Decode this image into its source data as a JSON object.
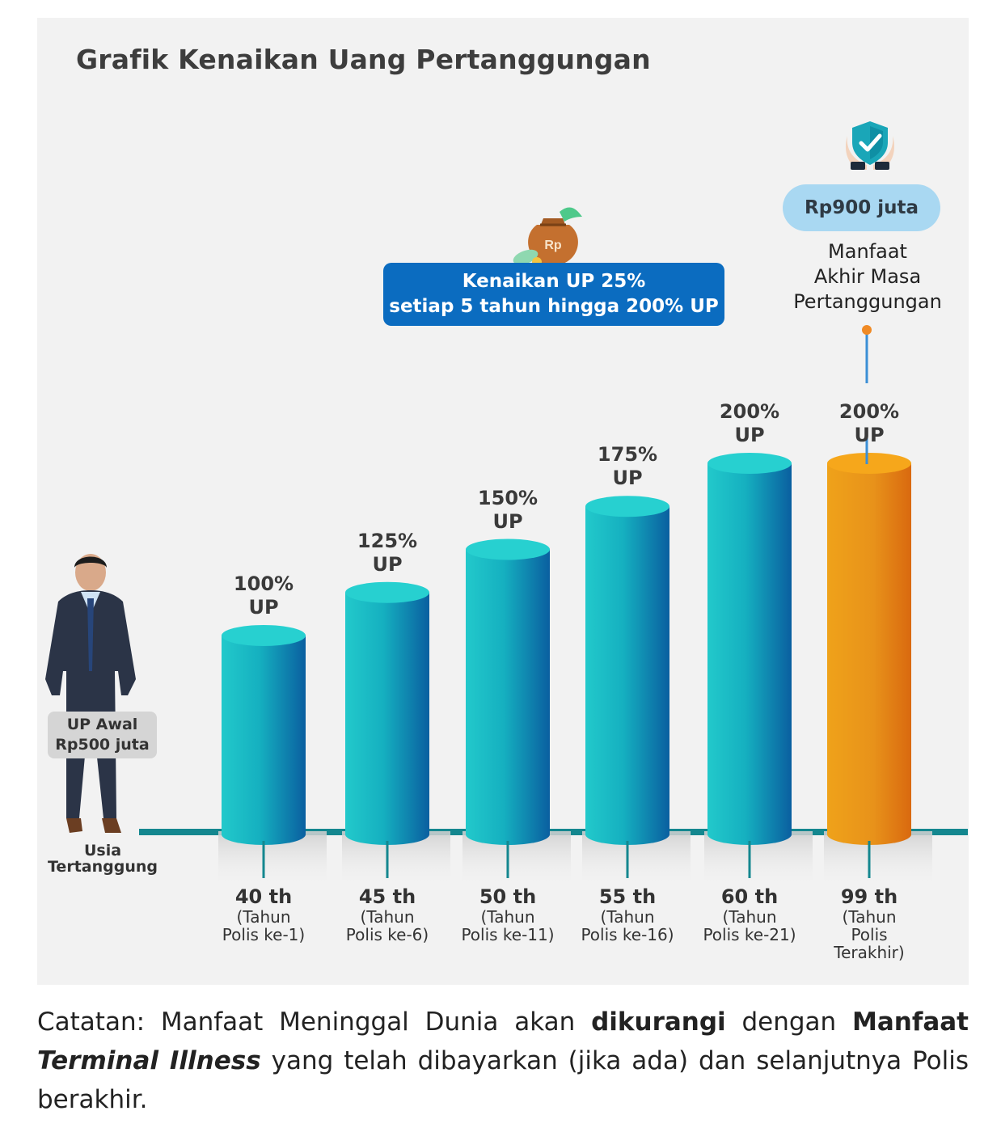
{
  "chart_data": {
    "type": "bar",
    "title": "Grafik Kenaikan Uang Pertanggungan",
    "categories": [
      "40 th",
      "45 th",
      "50 th",
      "55 th",
      "60 th",
      "99 th"
    ],
    "category_subtitles": [
      "(Tahun\nPolis ke-1)",
      "(Tahun\nPolis ke-6)",
      "(Tahun\nPolis ke-11)",
      "(Tahun\nPolis ke-16)",
      "(Tahun\nPolis ke-21)",
      "(Tahun\nPolis\nTerakhir)"
    ],
    "values": [
      100,
      125,
      150,
      175,
      200,
      200
    ],
    "value_labels": [
      "100%\nUP",
      "125%\nUP",
      "150%\nUP",
      "175%\nUP",
      "200%\nUP",
      "200%\nUP"
    ],
    "ylim": [
      0,
      200
    ],
    "bar_colors": [
      "#1ec4c8",
      "#1ec4c8",
      "#1ec4c8",
      "#1ec4c8",
      "#1ec4c8",
      "#f0a21a"
    ],
    "axis_label": "Usia\nTertanggung",
    "start_label": "UP Awal\nRp500 juta",
    "increase_note": "Kenaikan UP 25%\nsetiap 5 tahun hingga 200% UP",
    "final_amount": "Rp900 juta",
    "final_benefit": "Manfaat\nAkhir Masa\nPertanggungan",
    "grid": false
  },
  "icons": {
    "money_bag": "money-bag-icon",
    "money_bag_text": "Rp",
    "shield": "shield-hands-icon",
    "person": "businessman-figure"
  },
  "footnote": {
    "prefix": "Catatan: Manfaat Meninggal Dunia akan ",
    "bold1": "dikurangi",
    "mid1": " dengan ",
    "bold2": "Manfaat",
    "italic_bold": "Terminal Illness",
    "suffix": " yang telah dibayarkan (jika ada) dan selanjutnya Polis berakhir."
  }
}
